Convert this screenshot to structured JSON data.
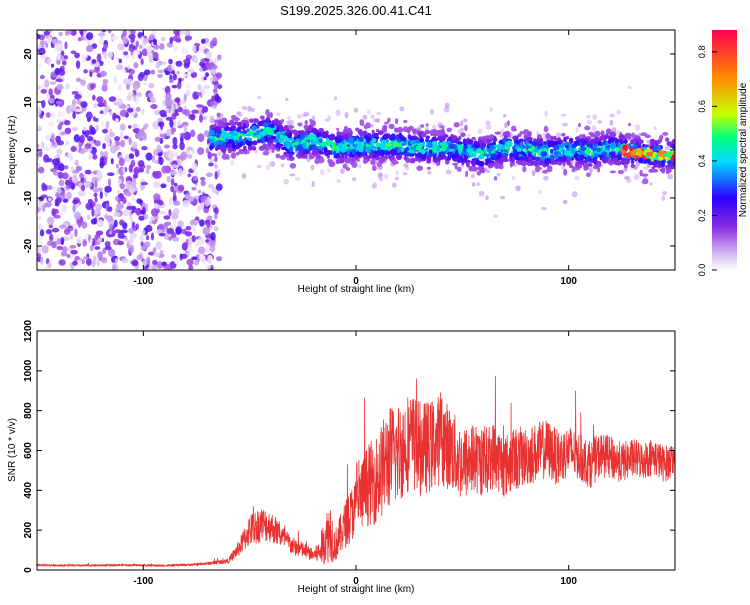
{
  "title": "S199.2025.326.00.41.C41",
  "colors": {
    "snr_line": "#e83232",
    "colormap": [
      "#ffffff",
      "#d9c2f2",
      "#8a2be2",
      "#2a00ff",
      "#00d9ff",
      "#00ff7f",
      "#c8ff00",
      "#ff8c00",
      "#ff0050"
    ]
  },
  "chart_data": [
    {
      "type": "heatmap",
      "name": "spectrogram",
      "xlabel": "Height of straight line (km)",
      "ylabel": "Frequency (Hz)",
      "xlim": [
        -150,
        150
      ],
      "ylim": [
        -25,
        25
      ],
      "xticks": [
        -100,
        0,
        100
      ],
      "yticks": [
        -20,
        -10,
        0,
        10,
        20
      ],
      "colorbar": {
        "label": "Normalized spectral amplitude",
        "range": [
          0,
          0.88
        ],
        "ticks": [
          0.0,
          0.2,
          0.4,
          0.6,
          0.8
        ]
      },
      "description_values": {
        "noise_region_x": [
          -150,
          -68
        ],
        "signal_start_x": -68,
        "signal_band_center_hz": [
          [
            -65,
            2.5
          ],
          [
            -50,
            3
          ],
          [
            -40,
            4
          ],
          [
            -30,
            1
          ],
          [
            -20,
            2
          ],
          [
            -10,
            0.5
          ],
          [
            0,
            1
          ],
          [
            10,
            1
          ],
          [
            20,
            1
          ],
          [
            30,
            0.5
          ],
          [
            40,
            0.5
          ],
          [
            50,
            0
          ],
          [
            60,
            -1
          ],
          [
            70,
            0.5
          ],
          [
            80,
            0
          ],
          [
            90,
            -0.5
          ],
          [
            100,
            0
          ],
          [
            110,
            -0.5
          ],
          [
            120,
            0.5
          ],
          [
            130,
            -0.5
          ],
          [
            140,
            -1
          ],
          [
            150,
            -1
          ]
        ],
        "peak_amplitude_region_x": [
          125,
          150
        ]
      }
    },
    {
      "type": "line",
      "name": "snr",
      "xlabel": "Height of straight line (km)",
      "ylabel": "SNR (10 * v/v)",
      "xlim": [
        -150,
        150
      ],
      "ylim": [
        0,
        1200
      ],
      "xticks": [
        -100,
        0,
        100
      ],
      "yticks": [
        0,
        200,
        400,
        600,
        800,
        1000,
        1200
      ],
      "series": [
        {
          "name": "SNR",
          "x": [
            -150,
            -130,
            -110,
            -90,
            -75,
            -68,
            -60,
            -55,
            -50,
            -45,
            -40,
            -35,
            -30,
            -25,
            -20,
            -17,
            -15,
            -12,
            -10,
            -5,
            0,
            5,
            10,
            15,
            20,
            25,
            30,
            35,
            40,
            45,
            50,
            55,
            60,
            65,
            70,
            75,
            80,
            85,
            90,
            95,
            100,
            105,
            110,
            115,
            120,
            125,
            130,
            135,
            140,
            145,
            150
          ],
          "values": [
            25,
            22,
            25,
            22,
            28,
            35,
            45,
            110,
            200,
            230,
            220,
            170,
            120,
            100,
            75,
            90,
            150,
            200,
            120,
            230,
            320,
            420,
            460,
            560,
            590,
            650,
            610,
            620,
            660,
            600,
            530,
            560,
            540,
            580,
            520,
            560,
            570,
            590,
            610,
            560,
            600,
            570,
            530,
            580,
            560,
            540,
            560,
            550,
            570,
            530,
            560
          ],
          "amplitude": [
            5,
            5,
            5,
            5,
            6,
            8,
            12,
            40,
            80,
            90,
            80,
            60,
            45,
            40,
            30,
            60,
            120,
            160,
            80,
            120,
            150,
            200,
            230,
            260,
            260,
            250,
            240,
            230,
            230,
            210,
            190,
            180,
            170,
            170,
            160,
            160,
            150,
            150,
            150,
            140,
            130,
            120,
            120,
            110,
            110,
            100,
            100,
            95,
            95,
            90,
            90
          ]
        }
      ]
    }
  ]
}
